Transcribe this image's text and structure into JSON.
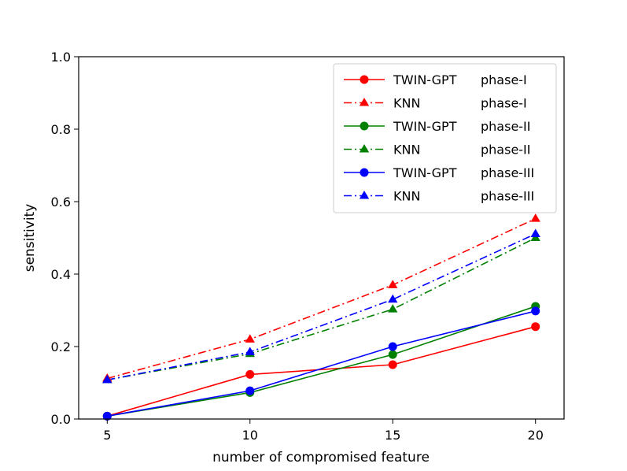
{
  "chart_data": {
    "type": "line",
    "title": "",
    "xlabel": "number of compromised feature",
    "ylabel": "sensitivity",
    "xlim": [
      4,
      21
    ],
    "ylim": [
      0.0,
      1.0
    ],
    "x": [
      5,
      10,
      15,
      20
    ],
    "xticks": [
      "5",
      "10",
      "15",
      "20"
    ],
    "yticks": [
      "0.0",
      "0.2",
      "0.4",
      "0.6",
      "0.8",
      "1.0"
    ],
    "grid": false,
    "legend_position": "top-right",
    "series": [
      {
        "name": "TWIN-GPT",
        "phase": "phase-I",
        "color": "#ff0000",
        "line": "solid",
        "marker": "circle",
        "values": [
          0.008,
          0.123,
          0.15,
          0.255
        ]
      },
      {
        "name": "KNN",
        "phase": "phase-I",
        "color": "#ff0000",
        "line": "dashdot",
        "marker": "triangle",
        "values": [
          0.112,
          0.22,
          0.37,
          0.553
        ]
      },
      {
        "name": "TWIN-GPT",
        "phase": "phase-II",
        "color": "#008000",
        "line": "solid",
        "marker": "circle",
        "values": [
          0.008,
          0.073,
          0.178,
          0.311
        ]
      },
      {
        "name": "KNN",
        "phase": "phase-II",
        "color": "#008000",
        "line": "dashdot",
        "marker": "triangle",
        "values": [
          0.108,
          0.18,
          0.303,
          0.5
        ]
      },
      {
        "name": "TWIN-GPT",
        "phase": "phase-III",
        "color": "#0000ff",
        "line": "solid",
        "marker": "circle",
        "values": [
          0.008,
          0.078,
          0.2,
          0.298
        ]
      },
      {
        "name": "KNN",
        "phase": "phase-III",
        "color": "#0000ff",
        "line": "dashdot",
        "marker": "triangle",
        "values": [
          0.108,
          0.185,
          0.33,
          0.511
        ]
      }
    ]
  }
}
